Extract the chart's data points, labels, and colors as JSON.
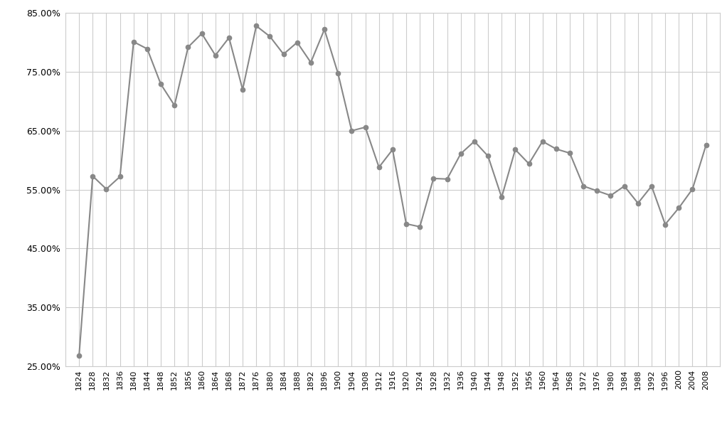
{
  "years": [
    1824,
    1828,
    1832,
    1836,
    1840,
    1844,
    1848,
    1852,
    1856,
    1860,
    1864,
    1868,
    1872,
    1876,
    1880,
    1884,
    1888,
    1892,
    1896,
    1900,
    1904,
    1908,
    1912,
    1916,
    1920,
    1924,
    1928,
    1932,
    1936,
    1940,
    1944,
    1948,
    1952,
    1956,
    1960,
    1964,
    1968,
    1972,
    1976,
    1980,
    1984,
    1988,
    1992,
    1996,
    2000,
    2004,
    2008
  ],
  "turnout": [
    0.268,
    0.573,
    0.551,
    0.572,
    0.801,
    0.789,
    0.729,
    0.693,
    0.792,
    0.815,
    0.778,
    0.808,
    0.72,
    0.828,
    0.81,
    0.78,
    0.8,
    0.766,
    0.822,
    0.747,
    0.65,
    0.656,
    0.588,
    0.618,
    0.492,
    0.487,
    0.569,
    0.568,
    0.611,
    0.632,
    0.607,
    0.537,
    0.618,
    0.594,
    0.632,
    0.619,
    0.612,
    0.556,
    0.548,
    0.54,
    0.556,
    0.527,
    0.556,
    0.491,
    0.519,
    0.551,
    0.626
  ],
  "line_color": "#888888",
  "marker_color": "#888888",
  "bg_color": "#ffffff",
  "grid_color": "#cccccc",
  "ylim_min": 0.25,
  "ylim_max": 0.85,
  "yticks": [
    0.25,
    0.35,
    0.45,
    0.55,
    0.65,
    0.75,
    0.85
  ]
}
